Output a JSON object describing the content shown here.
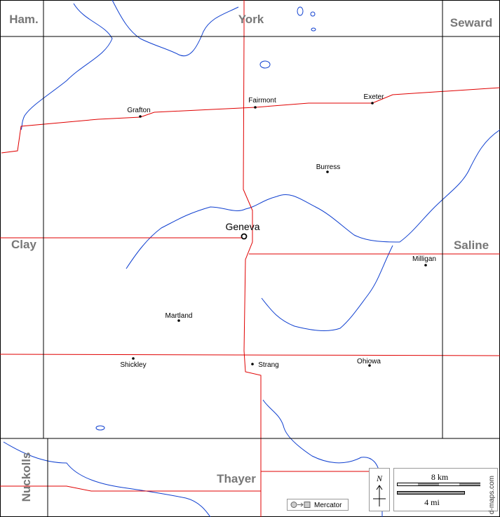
{
  "counties": [
    "Ham.",
    "York",
    "Seward",
    "Clay",
    "Saline",
    "Thayer",
    "Nuckolls"
  ],
  "capital": "Geneva",
  "towns": [
    "Grafton",
    "Fairmont",
    "Exeter",
    "Burress",
    "Milligan",
    "Martland",
    "Shickley",
    "Strang",
    "Ohiowa"
  ],
  "north": "N",
  "scale": {
    "km": "8 km",
    "mi": "4 mi"
  },
  "projection": "Mercator",
  "credit": "d-maps.com"
}
